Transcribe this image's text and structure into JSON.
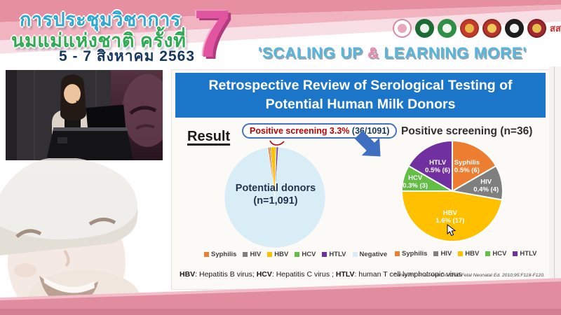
{
  "header": {
    "title_line1": "การประชุมวิชาการ",
    "title_line2": "นมแม่แห่งชาติ ครั้งที่",
    "date_line": "5 - 7 สิงหาคม 2563",
    "big_number": "7",
    "slogan": {
      "pre": "'SCALING UP ",
      "amp": "&",
      "post": " LEARNING MORE'"
    },
    "logos": [
      {
        "name": "mother-child-foundation-logo",
        "outer": "#ffffff",
        "ring": "#d98aa0",
        "inner": "#e8a9bb"
      },
      {
        "name": "green-medical-association-logo",
        "outer": "#1c6b34",
        "ring": "#1c6b34",
        "inner": "#eaf4ec"
      },
      {
        "name": "public-health-ministry-logo",
        "outer": "#2f8f46",
        "ring": "#2f8f46",
        "inner": "#f2f8f0"
      },
      {
        "name": "royal-college-emblem-logo",
        "outer": "#c23b2a",
        "ring": "#a8311f",
        "inner": "#e8b54a"
      },
      {
        "name": "royal-crown-emblem-logo",
        "outer": "#b5342c",
        "ring": "#8f2620",
        "inner": "#f0c85e"
      },
      {
        "name": "black-society-emblem-logo",
        "outer": "#1d1d1d",
        "ring": "#1d1d1d",
        "inner": "#f2f2f2"
      },
      {
        "name": "dark-red-council-logo",
        "outer": "#a0292f",
        "ring": "#801d22",
        "inner": "#e5c04e"
      },
      {
        "name": "thaihealth-sss-logo",
        "text": "สสส",
        "color": "#e02b2b"
      }
    ]
  },
  "slide": {
    "title": "Retrospective Review of Serological Testing of Potential Human Milk Donors",
    "result_label": "Result",
    "callout": {
      "bold": "Positive screening 3.3%",
      "paren": "(36/1091)"
    },
    "footnote_parts": [
      [
        "HBV",
        ": Hepatitis B virus; "
      ],
      [
        "HCV",
        ": Hepatitis C virus ; "
      ],
      [
        "HTLV",
        ": human T cell lymphotropic virus"
      ]
    ],
    "citation": "Cohen RS, et al. Arch Dis Child Fetal Neonatal Ed. 2010;95:F118-F120."
  },
  "chart_data": [
    {
      "type": "pie",
      "name": "potential-donors-pie",
      "center_label_line1": "Potential donors",
      "center_label_line2": "(n=1,091)",
      "categories": [
        "Syphilis",
        "HIV",
        "HBV",
        "HCV",
        "HTLV",
        "Negative"
      ],
      "values": [
        6,
        4,
        17,
        3,
        6,
        1055
      ],
      "total": 1091,
      "colors": [
        "#ED7D31",
        "#7F7F7F",
        "#FFC000",
        "#62BE44",
        "#7030A0",
        "#D9EDF7"
      ],
      "start_angle_deg": -8,
      "stroke_width": 0.5,
      "legend": [
        "Syphilis",
        "HIV",
        "HBV",
        "HCV",
        "HTLV",
        "Negative"
      ]
    },
    {
      "type": "pie",
      "name": "positive-screening-pie",
      "title": "Positive screening (n=36)",
      "categories": [
        "Syphilis",
        "HIV",
        "HBV",
        "HCV",
        "HTLV"
      ],
      "values": [
        6,
        4,
        17,
        3,
        6
      ],
      "total": 36,
      "colors": [
        "#ED7D31",
        "#7F7F7F",
        "#FFC000",
        "#62BE44",
        "#7030A0"
      ],
      "start_angle_deg": 0,
      "stroke_width": 2,
      "slice_labels": [
        [
          "Syphilis",
          "0.5% (6)"
        ],
        [
          "HIV",
          "0.4% (4)"
        ],
        [
          "HBV",
          "1.6% (17)"
        ],
        [
          "HCV",
          "0.3% (3)"
        ],
        [
          "HTLV",
          "0.5% (6)"
        ]
      ],
      "label_r": [
        0.58,
        0.68,
        0.5,
        0.76,
        0.58
      ],
      "legend": [
        "Syphilis",
        "HIV",
        "HBV",
        "HCV",
        "HTLV"
      ]
    }
  ],
  "colors": {
    "banner_blue": "#1B75C8",
    "arrow_blue": "#3E6FC1",
    "accent_red": "#C00000"
  }
}
